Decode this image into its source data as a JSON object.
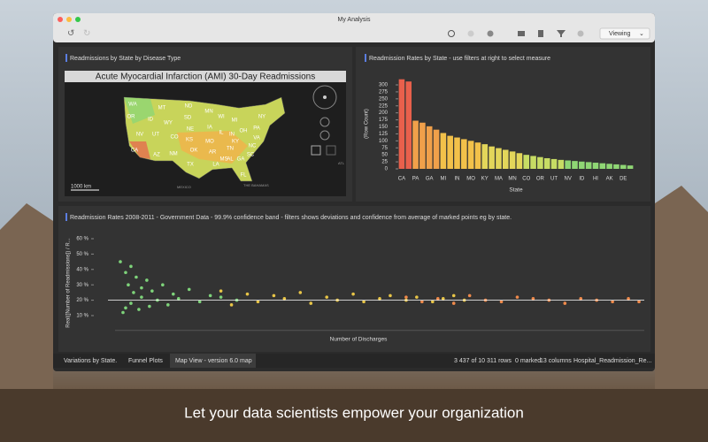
{
  "window": {
    "title": "My Analysis",
    "view_mode": "Viewing"
  },
  "map_panel": {
    "title": "Readmissions by State by Disease Type",
    "map_title": "Acute Myocardial Infarction (AMI) 30-Day Readmissions",
    "scale": "1000 km",
    "places": [
      "MEXICO",
      "THE BAHAMAS",
      "ATL"
    ],
    "state_labels": [
      "WA",
      "MT",
      "ND",
      "MN",
      "OR",
      "ID",
      "WY",
      "SD",
      "WI",
      "MI",
      "NY",
      "NV",
      "UT",
      "CO",
      "NE",
      "IA",
      "IL",
      "IN",
      "OH",
      "PA",
      "CA",
      "KS",
      "MO",
      "KY",
      "VA",
      "AZ",
      "NM",
      "OK",
      "AR",
      "TN",
      "NC",
      "SC",
      "TX",
      "LA",
      "MS",
      "AL",
      "GA",
      "FL"
    ]
  },
  "bar_panel": {
    "title": "Readmission Rates by State - use filters at right to select measure",
    "chart_data": {
      "type": "bar",
      "ylabel": "(Row Count)",
      "xlabel": "State",
      "categories": [
        "CA",
        null,
        "PA",
        null,
        "GA",
        null,
        "MI",
        null,
        "IN",
        null,
        "MO",
        null,
        "KY",
        null,
        "MA",
        null,
        "MN",
        null,
        "CO",
        null,
        "OR",
        null,
        "UT",
        null,
        "NV",
        null,
        "ID",
        null,
        "HI",
        null,
        "AK",
        null,
        "DE",
        null
      ],
      "values": [
        320,
        312,
        172,
        165,
        152,
        140,
        128,
        118,
        112,
        106,
        100,
        94,
        88,
        80,
        74,
        68,
        62,
        56,
        50,
        46,
        42,
        38,
        35,
        32,
        30,
        28,
        26,
        24,
        22,
        20,
        18,
        16,
        14,
        12
      ],
      "colors": [
        "#e8604c",
        "#e8604c",
        "#f0a04a",
        "#f0a04a",
        "#f0a04a",
        "#f0a04a",
        "#f2c14a",
        "#f2c14a",
        "#f2c14a",
        "#f2c14a",
        "#f2c14a",
        "#f2c14a",
        "#e3d65a",
        "#e3d65a",
        "#e3d65a",
        "#e3d65a",
        "#e3d65a",
        "#e3d65a",
        "#c7dc64",
        "#c7dc64",
        "#c7dc64",
        "#c7dc64",
        "#c7dc64",
        "#c7dc64",
        "#8fd674",
        "#8fd674",
        "#8fd674",
        "#8fd674",
        "#8fd674",
        "#8fd674",
        "#8fd674",
        "#8fd674",
        "#8fd674",
        "#8fd674"
      ],
      "ylim": [
        0,
        330
      ],
      "yticks": [
        0,
        25,
        50,
        75,
        100,
        125,
        150,
        175,
        200,
        225,
        250,
        275,
        300
      ]
    }
  },
  "scatter_panel": {
    "title": "Readmission Rates 2008-2011 - Government Data - 99.9% confidence band - filters shows deviations and confidence from average of marked points eg by state.",
    "chart_data": {
      "type": "scatter",
      "xlabel": "Number of Discharges",
      "ylabel": "Real([Number of Readmissions]) / R...",
      "xlim": [
        0,
        100
      ],
      "ylim": [
        5,
        65
      ],
      "yticks": [
        {
          "value": 10,
          "label": "10 %"
        },
        {
          "value": 20,
          "label": "20 %"
        },
        {
          "value": 30,
          "label": "30 %"
        },
        {
          "value": 40,
          "label": "40 %"
        },
        {
          "value": 50,
          "label": "50 %"
        },
        {
          "value": 60,
          "label": "60 %"
        }
      ],
      "reference_line": 20,
      "series": [
        {
          "color": "#7ed37a",
          "x": [
            1,
            1.5,
            2,
            2,
            2.5,
            3,
            3,
            3.5,
            4,
            4.5,
            5,
            5,
            6,
            6.5,
            7,
            8,
            9,
            10,
            11,
            12,
            14,
            16,
            18,
            20,
            23
          ],
          "values": [
            45,
            12,
            38,
            15,
            30,
            42,
            18,
            25,
            35,
            14,
            28,
            22,
            33,
            16,
            26,
            20,
            30,
            17,
            24,
            21,
            27,
            19,
            23,
            22,
            20
          ]
        },
        {
          "color": "#e8c547",
          "x": [
            20,
            22,
            25,
            27,
            30,
            32,
            35,
            37,
            40,
            42,
            45,
            47,
            50,
            52,
            55,
            57,
            60,
            62,
            64,
            66
          ],
          "values": [
            26,
            17,
            24,
            19,
            23,
            21,
            25,
            18,
            22,
            20,
            24,
            19,
            21,
            23,
            20,
            22,
            19,
            21,
            23,
            20
          ]
        },
        {
          "color": "#f08a4b",
          "x": [
            55,
            58,
            61,
            64,
            67,
            70,
            73,
            76,
            79,
            82,
            85,
            88,
            91,
            94,
            97,
            99
          ],
          "values": [
            22,
            19,
            21,
            18,
            23,
            20,
            19,
            22,
            21,
            20,
            18,
            21,
            20,
            19,
            21,
            19
          ]
        }
      ]
    }
  },
  "tabs": [
    "Variations by State.",
    "Funnel Plots",
    "Map View - version 6.0 map"
  ],
  "status": [
    "3 437 of 10 311 rows",
    "0 marked",
    "13 columns",
    "Hospital_Readmission_Re..."
  ],
  "tagline": "Let your data scientists empower your organization"
}
